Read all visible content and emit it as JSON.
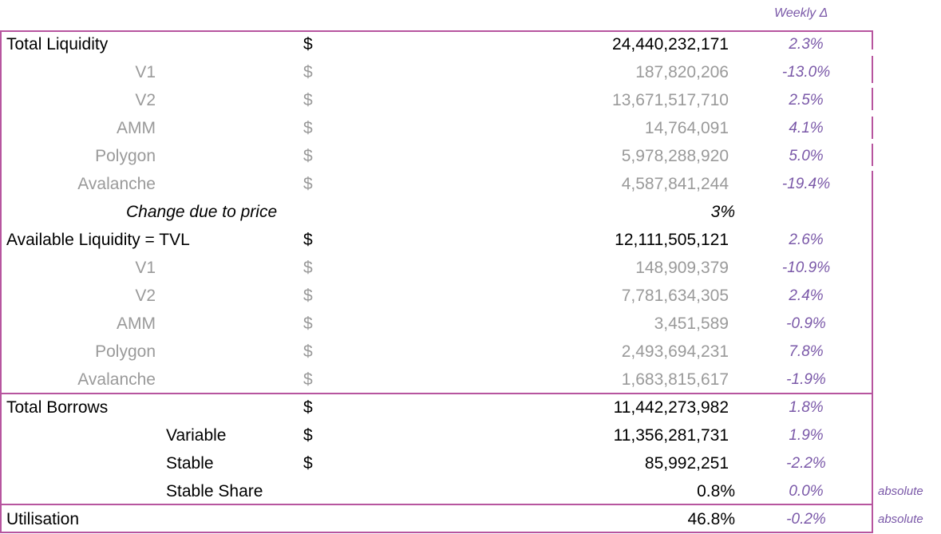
{
  "header": {
    "weekly_delta": "Weekly Δ"
  },
  "currency": "$",
  "total_liquidity": {
    "label": "Total Liquidity",
    "value": "24,440,232,171",
    "change": "2.3%",
    "items": [
      {
        "label": "V1",
        "value": "187,820,206",
        "change": "-13.0%"
      },
      {
        "label": "V2",
        "value": "13,671,517,710",
        "change": "2.5%"
      },
      {
        "label": "AMM",
        "value": "14,764,091",
        "change": "4.1%"
      },
      {
        "label": "Polygon",
        "value": "5,978,288,920",
        "change": "5.0%"
      },
      {
        "label": "Avalanche",
        "value": "4,587,841,244",
        "change": "-19.4%"
      }
    ]
  },
  "price_change": {
    "label": "Change due to price",
    "value": "3%"
  },
  "available_liquidity": {
    "label": "Available Liquidity  = TVL",
    "value": "12,111,505,121",
    "change": "2.6%",
    "items": [
      {
        "label": "V1",
        "value": "148,909,379",
        "change": "-10.9%"
      },
      {
        "label": "V2",
        "value": "7,781,634,305",
        "change": "2.4%"
      },
      {
        "label": "AMM",
        "value": "3,451,589",
        "change": "-0.9%"
      },
      {
        "label": "Polygon",
        "value": "2,493,694,231",
        "change": "7.8%"
      },
      {
        "label": "Avalanche",
        "value": "1,683,815,617",
        "change": "-1.9%"
      }
    ]
  },
  "total_borrows": {
    "label": "Total Borrows",
    "value": "11,442,273,982",
    "change": "1.8%",
    "variable": {
      "label": "Variable",
      "value": "11,356,281,731",
      "change": "1.9%"
    },
    "stable": {
      "label": "Stable",
      "value": "85,992,251",
      "change": "-2.2%"
    },
    "stable_share": {
      "label": "Stable Share",
      "value": "0.8%",
      "change": "0.0%",
      "note": "absolute"
    }
  },
  "utilisation": {
    "label": "Utilisation",
    "value": "46.8%",
    "change": "-0.2%",
    "note": "absolute"
  },
  "colors": {
    "border": "#b7559f",
    "change_text": "#7a58a8",
    "sub_text": "#9a9a9a"
  }
}
